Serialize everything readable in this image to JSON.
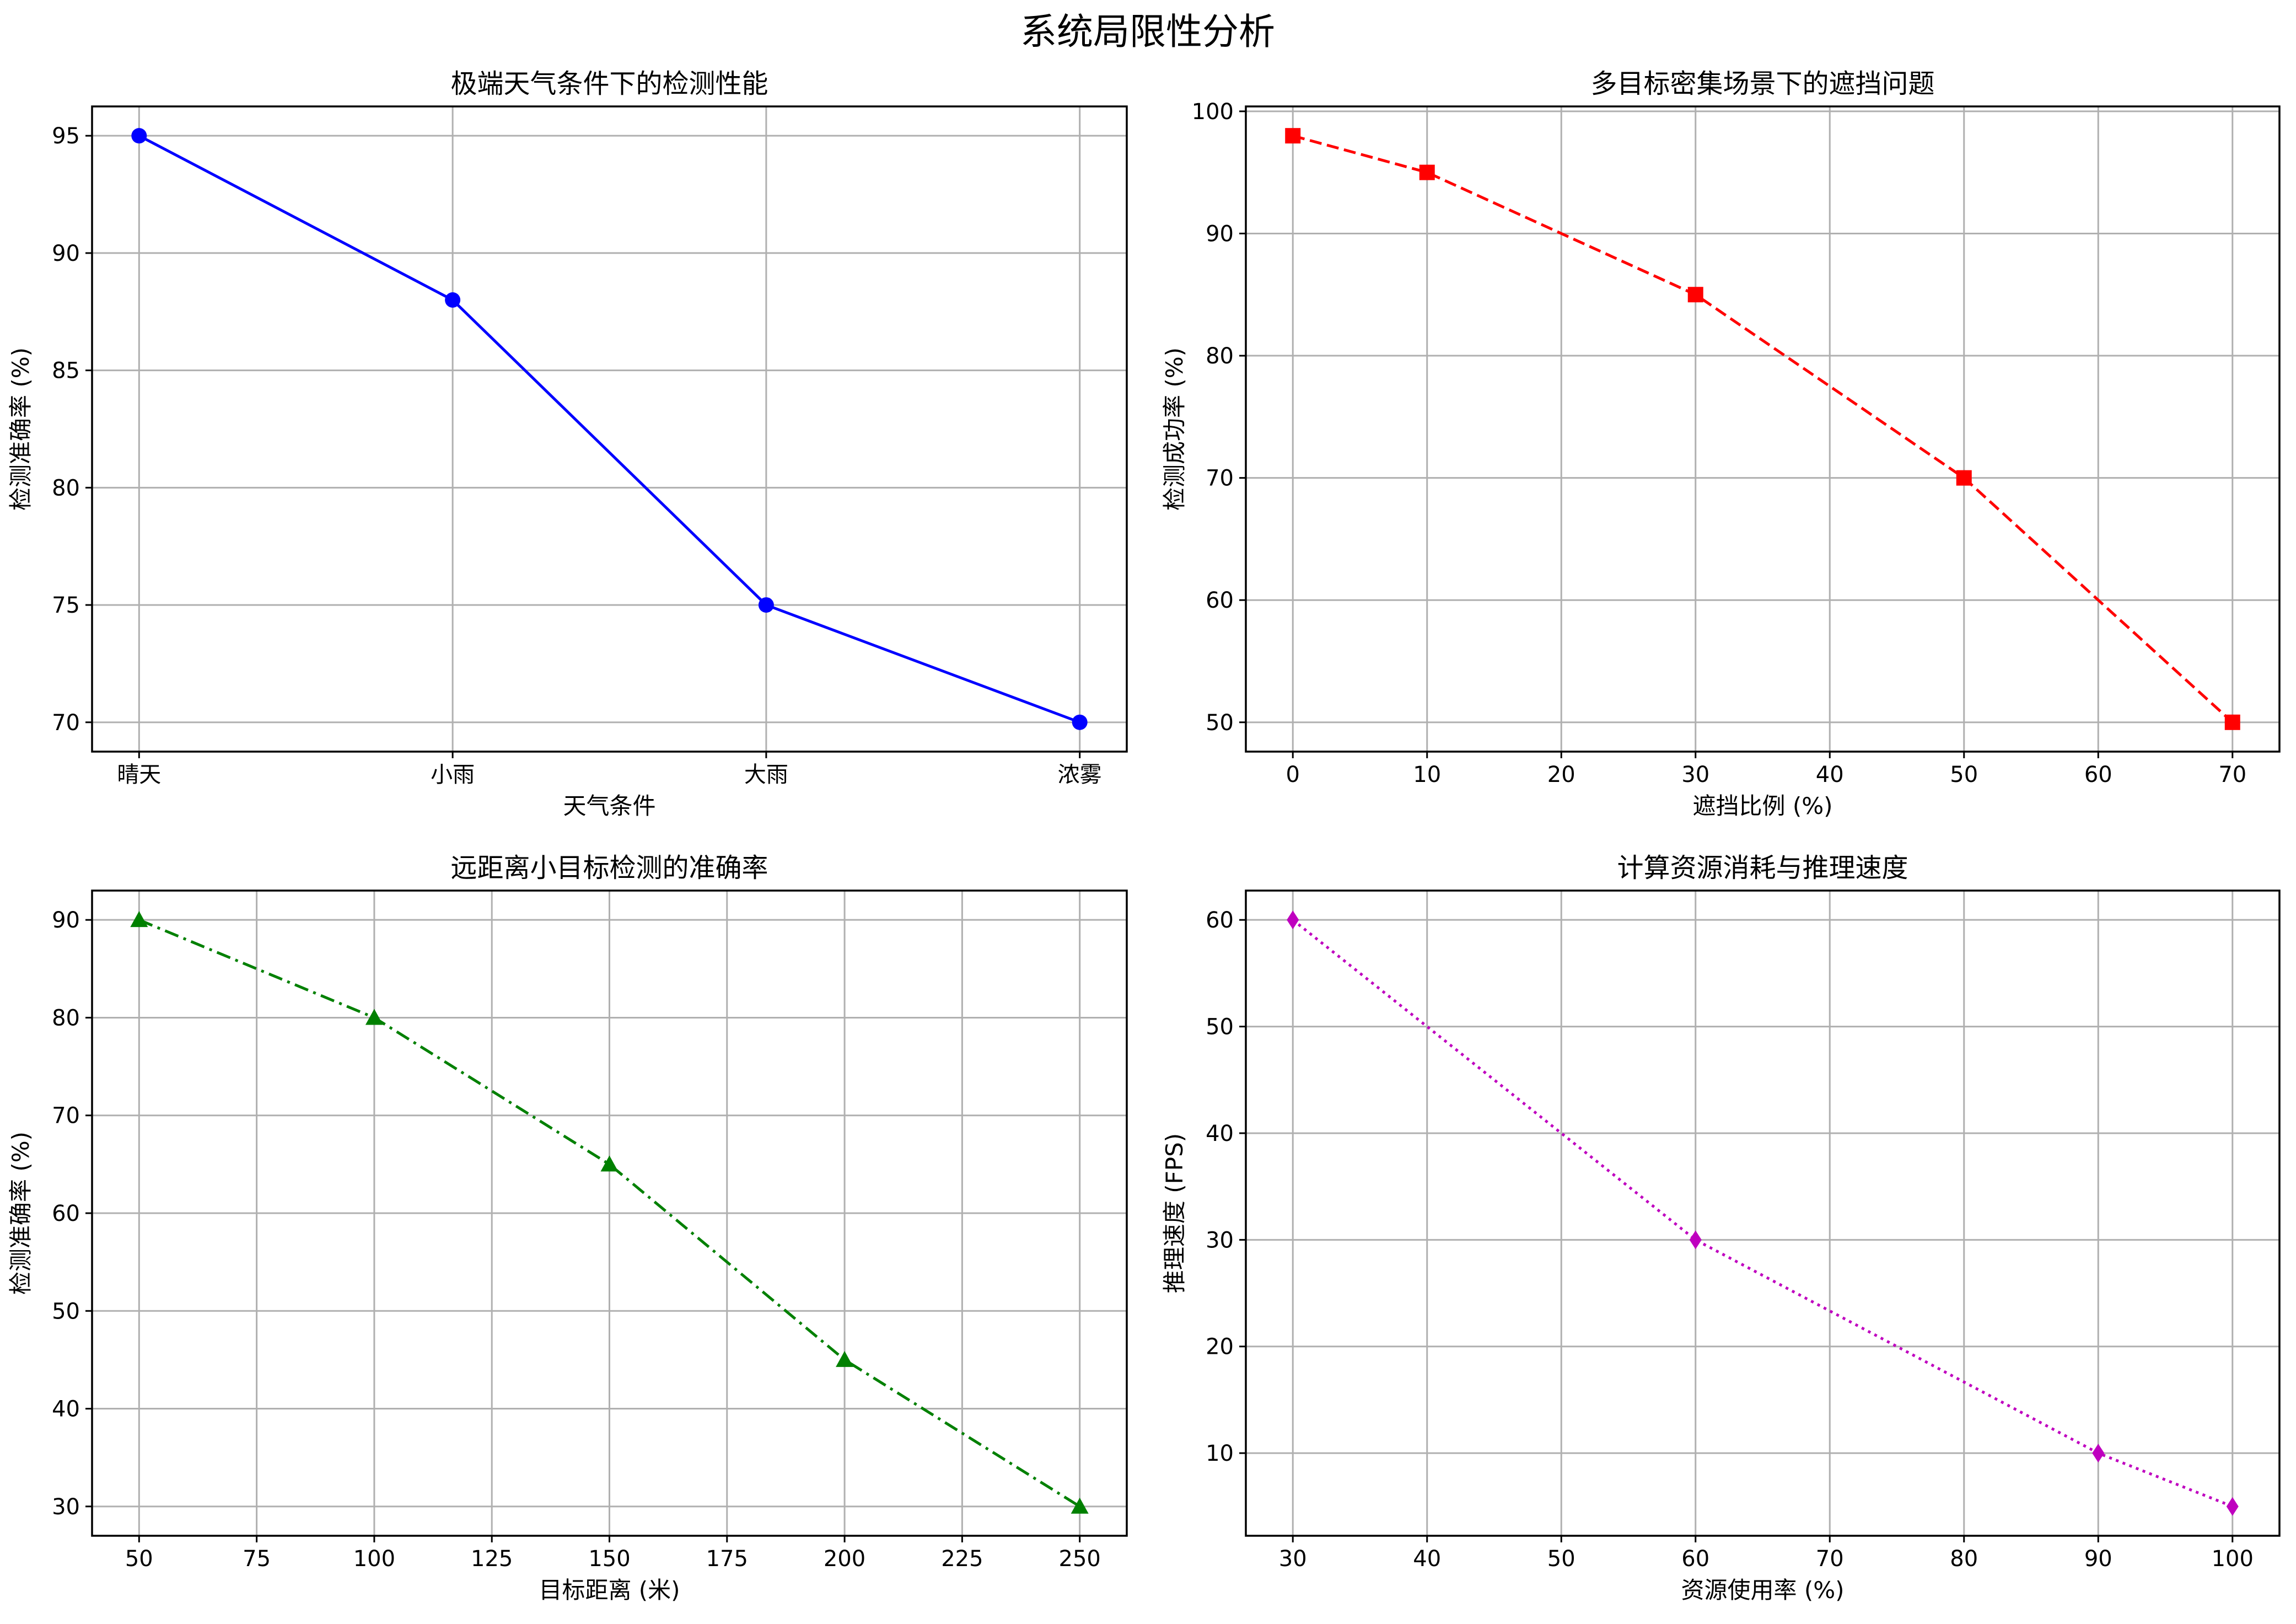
{
  "figure": {
    "title": "系统局限性分析"
  },
  "chart_data": [
    {
      "type": "line",
      "title": "极端天气条件下的检测性能",
      "xlabel": "天气条件",
      "ylabel": "检测准确率 (%)",
      "categories": [
        "晴天",
        "小雨",
        "大雨",
        "浓雾"
      ],
      "series": [
        {
          "values": [
            95,
            88,
            75,
            70
          ]
        }
      ],
      "ylim": [
        68.75,
        96.25
      ],
      "xlim": [
        -0.15,
        3.15
      ],
      "yticks": [
        70,
        75,
        80,
        85,
        90,
        95
      ],
      "line_style": "solid",
      "marker": "circle",
      "color": "#0000ff",
      "grid": true
    },
    {
      "type": "line",
      "title": "多目标密集场景下的遮挡问题",
      "xlabel": "遮挡比例 (%)",
      "ylabel": "检测成功率 (%)",
      "x": [
        0,
        10,
        30,
        50,
        70
      ],
      "series": [
        {
          "values": [
            98,
            95,
            85,
            70,
            50
          ]
        }
      ],
      "xlim": [
        -3.5,
        73.5
      ],
      "ylim": [
        47.6,
        100.4
      ],
      "xticks": [
        0,
        10,
        20,
        30,
        40,
        50,
        60,
        70
      ],
      "yticks": [
        50,
        60,
        70,
        80,
        90,
        100
      ],
      "line_style": "dashed",
      "marker": "square",
      "color": "#ff0000",
      "grid": true
    },
    {
      "type": "line",
      "title": "远距离小目标检测的准确率",
      "xlabel": "目标距离 (米)",
      "ylabel": "检测准确率 (%)",
      "x": [
        50,
        100,
        150,
        200,
        250
      ],
      "series": [
        {
          "values": [
            90,
            80,
            65,
            45,
            30
          ]
        }
      ],
      "xlim": [
        40,
        260
      ],
      "ylim": [
        27,
        93
      ],
      "xticks": [
        50,
        75,
        100,
        125,
        150,
        175,
        200,
        225,
        250
      ],
      "yticks": [
        30,
        40,
        50,
        60,
        70,
        80,
        90
      ],
      "line_style": "dashdot",
      "marker": "triangle",
      "color": "#008000",
      "grid": true
    },
    {
      "type": "line",
      "title": "计算资源消耗与推理速度",
      "xlabel": "资源使用率 (%)",
      "ylabel": "推理速度 (FPS)",
      "x": [
        30,
        60,
        90,
        100
      ],
      "series": [
        {
          "values": [
            60,
            30,
            10,
            5
          ]
        }
      ],
      "xlim": [
        26.5,
        103.5
      ],
      "ylim": [
        2.25,
        62.75
      ],
      "xticks": [
        30,
        40,
        50,
        60,
        70,
        80,
        90,
        100
      ],
      "yticks": [
        10,
        20,
        30,
        40,
        50,
        60
      ],
      "line_style": "dotted",
      "marker": "diamond",
      "color": "#bf00bf",
      "grid": true
    }
  ]
}
